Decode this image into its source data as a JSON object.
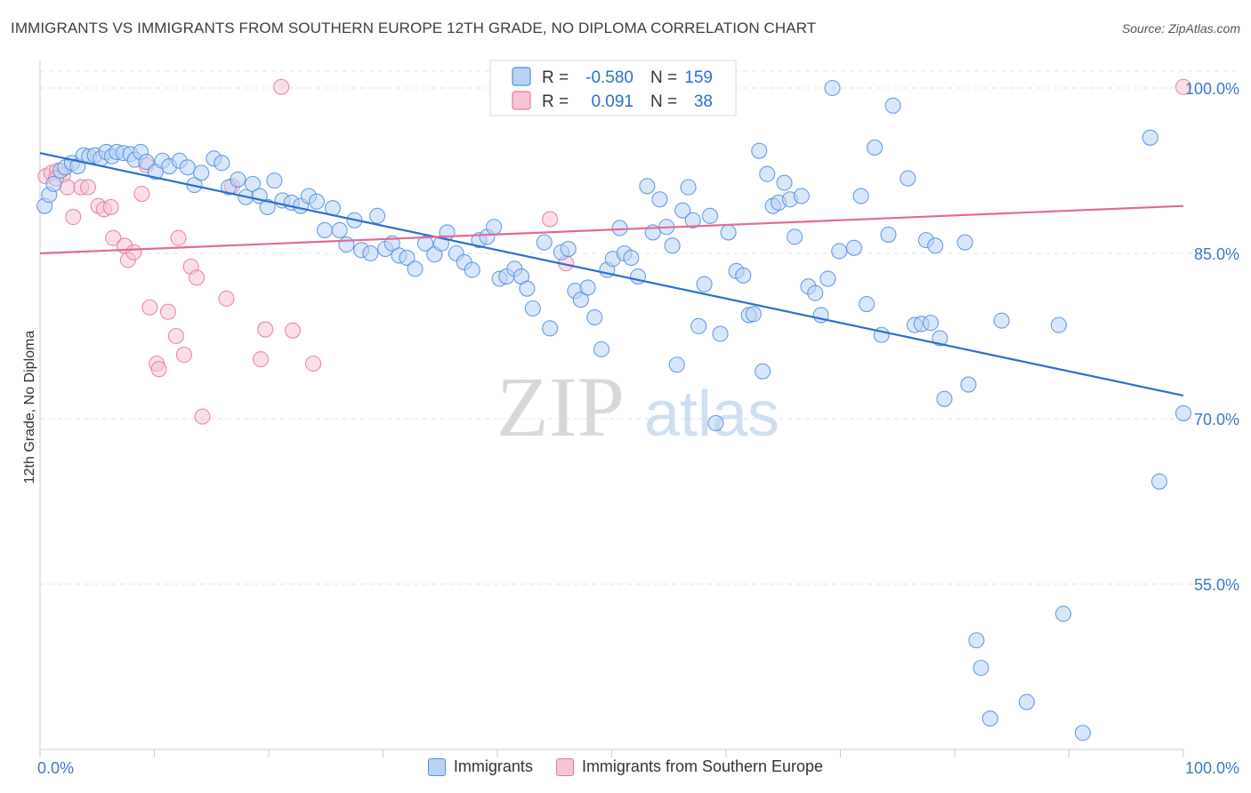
{
  "title": "IMMIGRANTS VS IMMIGRANTS FROM SOUTHERN EUROPE 12TH GRADE, NO DIPLOMA CORRELATION CHART",
  "source": "Source: ZipAtlas.com",
  "watermark": {
    "zip": "ZIP",
    "atlas": "atlas"
  },
  "colors": {
    "blue": "#4d8ee0",
    "blue_fill": "#b9d3f5",
    "pink": "#e8779e",
    "pink_fill": "#f8c4d6",
    "blue_line": "#2a6fd1",
    "pink_line": "#e26a97"
  },
  "legend": {
    "row1": {
      "r_label": "R =",
      "r_value": "-0.580",
      "n_label": "N =",
      "n_value": "159"
    },
    "row2": {
      "r_label": "R =",
      "r_value": "0.091",
      "n_label": "N =",
      "n_value": "38"
    }
  },
  "chart_data": {
    "type": "scatter",
    "title": "IMMIGRANTS VS IMMIGRANTS FROM SOUTHERN EUROPE 12TH GRADE, NO DIPLOMA CORRELATION CHART",
    "xlabel": "",
    "ylabel": "12th Grade, No Diploma",
    "xlim": [
      0,
      100
    ],
    "ylim": [
      40,
      102.5
    ],
    "x_tick_labels": [
      "0.0%",
      "100.0%"
    ],
    "y_ticks": [
      55,
      70,
      85,
      100
    ],
    "y_tick_labels": [
      "55.0%",
      "70.0%",
      "85.0%",
      "100.0%"
    ],
    "grid": true,
    "legend_position": "bottom",
    "series": [
      {
        "name": "Immigrants",
        "color": "#4d8ee0",
        "r": -0.58,
        "n": 159,
        "trend": {
          "x": [
            0,
            100
          ],
          "y": [
            94.1,
            72.1
          ]
        },
        "points": [
          [
            0.4,
            89.3
          ],
          [
            0.8,
            90.3
          ],
          [
            1.2,
            91.3
          ],
          [
            1.8,
            92.5
          ],
          [
            2.2,
            92.8
          ],
          [
            2.8,
            93.2
          ],
          [
            3.3,
            92.9
          ],
          [
            3.8,
            93.9
          ],
          [
            4.3,
            93.8
          ],
          [
            4.8,
            93.9
          ],
          [
            5.3,
            93.6
          ],
          [
            5.8,
            94.2
          ],
          [
            6.3,
            93.8
          ],
          [
            6.7,
            94.2
          ],
          [
            7.3,
            94.1
          ],
          [
            7.9,
            94.0
          ],
          [
            8.3,
            93.5
          ],
          [
            8.8,
            94.2
          ],
          [
            9.3,
            93.3
          ],
          [
            10.1,
            92.4
          ],
          [
            10.7,
            93.4
          ],
          [
            11.3,
            92.9
          ],
          [
            12.2,
            93.4
          ],
          [
            12.9,
            92.8
          ],
          [
            13.5,
            91.2
          ],
          [
            14.1,
            92.3
          ],
          [
            15.2,
            93.6
          ],
          [
            15.9,
            93.2
          ],
          [
            16.5,
            91.0
          ],
          [
            17.3,
            91.7
          ],
          [
            18.0,
            90.1
          ],
          [
            18.6,
            91.3
          ],
          [
            19.2,
            90.2
          ],
          [
            19.9,
            89.2
          ],
          [
            20.5,
            91.6
          ],
          [
            21.2,
            89.8
          ],
          [
            22.0,
            89.6
          ],
          [
            22.8,
            89.3
          ],
          [
            23.5,
            90.2
          ],
          [
            24.2,
            89.7
          ],
          [
            24.9,
            87.1
          ],
          [
            25.6,
            89.1
          ],
          [
            26.2,
            87.1
          ],
          [
            26.8,
            85.8
          ],
          [
            27.5,
            88.0
          ],
          [
            28.1,
            85.3
          ],
          [
            28.9,
            85.0
          ],
          [
            29.5,
            88.4
          ],
          [
            30.2,
            85.4
          ],
          [
            30.8,
            85.9
          ],
          [
            31.4,
            84.8
          ],
          [
            32.1,
            84.6
          ],
          [
            32.8,
            83.6
          ],
          [
            33.7,
            85.9
          ],
          [
            34.5,
            84.9
          ],
          [
            35.1,
            85.9
          ],
          [
            35.6,
            86.9
          ],
          [
            36.4,
            85.0
          ],
          [
            37.1,
            84.2
          ],
          [
            37.8,
            83.5
          ],
          [
            38.4,
            86.2
          ],
          [
            39.1,
            86.5
          ],
          [
            39.7,
            87.4
          ],
          [
            40.2,
            82.7
          ],
          [
            40.8,
            82.9
          ],
          [
            41.5,
            83.6
          ],
          [
            42.1,
            82.9
          ],
          [
            42.6,
            81.8
          ],
          [
            43.1,
            80.0
          ],
          [
            44.1,
            86.0
          ],
          [
            44.6,
            78.2
          ],
          [
            45.6,
            85.1
          ],
          [
            46.2,
            85.4
          ],
          [
            46.8,
            81.6
          ],
          [
            47.3,
            80.8
          ],
          [
            47.9,
            81.9
          ],
          [
            48.5,
            79.2
          ],
          [
            49.1,
            76.3
          ],
          [
            49.6,
            83.5
          ],
          [
            50.1,
            84.5
          ],
          [
            50.7,
            87.3
          ],
          [
            51.1,
            85.0
          ],
          [
            51.7,
            84.6
          ],
          [
            52.3,
            82.9
          ],
          [
            53.1,
            91.1
          ],
          [
            53.6,
            86.9
          ],
          [
            54.2,
            89.9
          ],
          [
            54.8,
            87.4
          ],
          [
            55.3,
            85.7
          ],
          [
            55.7,
            74.9
          ],
          [
            56.2,
            88.9
          ],
          [
            56.7,
            91.0
          ],
          [
            57.1,
            88.0
          ],
          [
            57.6,
            78.4
          ],
          [
            58.1,
            82.2
          ],
          [
            58.6,
            88.4
          ],
          [
            59.1,
            69.6
          ],
          [
            59.5,
            77.7
          ],
          [
            60.2,
            86.9
          ],
          [
            60.9,
            83.4
          ],
          [
            61.5,
            83.0
          ],
          [
            62.0,
            79.4
          ],
          [
            62.4,
            79.5
          ],
          [
            62.9,
            94.3
          ],
          [
            63.2,
            74.3
          ],
          [
            63.6,
            92.2
          ],
          [
            64.1,
            89.3
          ],
          [
            64.6,
            89.6
          ],
          [
            65.1,
            91.4
          ],
          [
            65.6,
            89.9
          ],
          [
            66.0,
            86.5
          ],
          [
            66.6,
            90.2
          ],
          [
            67.2,
            82.0
          ],
          [
            67.8,
            81.4
          ],
          [
            68.3,
            79.4
          ],
          [
            68.9,
            82.7
          ],
          [
            69.3,
            100.0
          ],
          [
            69.9,
            85.2
          ],
          [
            71.2,
            85.5
          ],
          [
            71.8,
            90.2
          ],
          [
            72.3,
            80.4
          ],
          [
            73.0,
            94.6
          ],
          [
            73.6,
            77.6
          ],
          [
            74.2,
            86.7
          ],
          [
            74.6,
            98.4
          ],
          [
            75.9,
            91.8
          ],
          [
            76.5,
            78.5
          ],
          [
            77.1,
            78.6
          ],
          [
            77.5,
            86.2
          ],
          [
            77.9,
            78.7
          ],
          [
            78.3,
            85.7
          ],
          [
            78.7,
            77.3
          ],
          [
            79.1,
            71.8
          ],
          [
            80.9,
            86.0
          ],
          [
            81.2,
            73.1
          ],
          [
            81.9,
            49.9
          ],
          [
            82.3,
            47.4
          ],
          [
            84.1,
            78.9
          ],
          [
            89.1,
            78.5
          ],
          [
            89.5,
            52.3
          ],
          [
            97.9,
            64.3
          ],
          [
            100.0,
            70.5
          ],
          [
            86.3,
            44.3
          ],
          [
            91.2,
            41.5
          ],
          [
            83.1,
            42.8
          ],
          [
            97.1,
            95.5
          ]
        ]
      },
      {
        "name": "Immigrants from Southern Europe",
        "color": "#e8779e",
        "r": 0.091,
        "n": 38,
        "trend": {
          "x": [
            0,
            100
          ],
          "y": [
            85.0,
            89.3
          ]
        },
        "points": [
          [
            0.5,
            92.0
          ],
          [
            1.0,
            92.3
          ],
          [
            1.5,
            92.5
          ],
          [
            2.0,
            92.1
          ],
          [
            2.4,
            91.0
          ],
          [
            2.9,
            88.3
          ],
          [
            3.6,
            91.0
          ],
          [
            4.2,
            91.0
          ],
          [
            5.1,
            89.3
          ],
          [
            5.6,
            89.0
          ],
          [
            6.2,
            89.2
          ],
          [
            6.4,
            86.4
          ],
          [
            7.4,
            85.7
          ],
          [
            7.7,
            84.4
          ],
          [
            8.2,
            85.1
          ],
          [
            8.9,
            90.4
          ],
          [
            9.6,
            80.1
          ],
          [
            10.2,
            75.0
          ],
          [
            10.4,
            74.5
          ],
          [
            11.2,
            79.7
          ],
          [
            11.9,
            77.5
          ],
          [
            12.1,
            86.4
          ],
          [
            12.6,
            75.8
          ],
          [
            13.2,
            83.8
          ],
          [
            13.7,
            82.8
          ],
          [
            14.2,
            70.2
          ],
          [
            16.3,
            80.9
          ],
          [
            16.8,
            91.1
          ],
          [
            19.3,
            75.4
          ],
          [
            19.7,
            78.1
          ],
          [
            21.1,
            100.1
          ],
          [
            22.1,
            78.0
          ],
          [
            23.9,
            75.0
          ],
          [
            44.6,
            88.1
          ],
          [
            46.0,
            84.1
          ],
          [
            9.3,
            93.0
          ],
          [
            1.4,
            91.8
          ],
          [
            100.0,
            100.1
          ]
        ]
      }
    ]
  }
}
